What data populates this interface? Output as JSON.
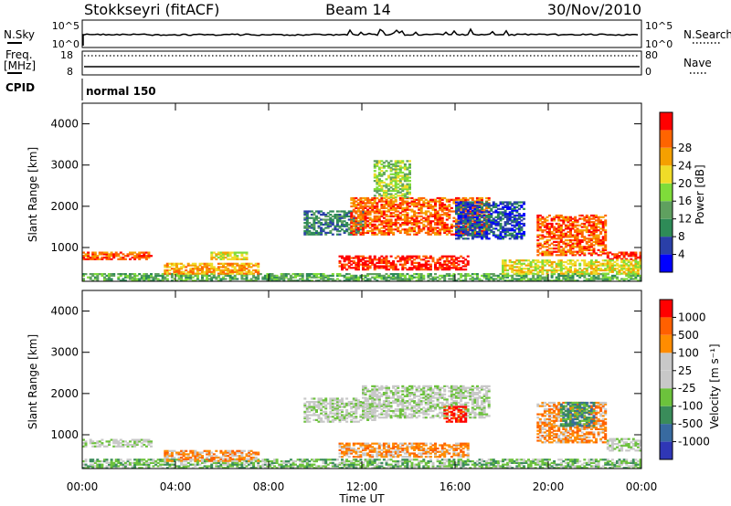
{
  "header": {
    "station": "Stokkseyri (fitACF)",
    "beam": "Beam 14",
    "date": "30/Nov/2010"
  },
  "status_panels": {
    "nsky_label": "N.Sky",
    "nsky_ticks": [
      "10^5",
      "10^0"
    ],
    "nsearch_label": "N.Search",
    "nsearch_ticks": [
      "10^5",
      "10^0"
    ],
    "freq_label_line1": "Freq.",
    "freq_label_line2": "[MHz]",
    "freq_ticks": [
      "18",
      "8"
    ],
    "nave_label": "Nave",
    "nave_ticks": [
      "80",
      "0"
    ],
    "cpid_label": "CPID",
    "cpid_value": "normal 150"
  },
  "colors": {
    "power_scale": [
      "#0000ff",
      "#2a3fa8",
      "#2e8b57",
      "#5fa05f",
      "#7fdc3a",
      "#f0dc28",
      "#f5a000",
      "#ff6400",
      "#ff0000"
    ],
    "velocity_scale": [
      "#2f37b6",
      "#386aa0",
      "#3a8c5a",
      "#6cc23c",
      "#c8c8c8",
      "#c8c8c8",
      "#ff8c00",
      "#ff6000",
      "#ff0000"
    ]
  },
  "chart_data": [
    {
      "type": "heatmap",
      "name": "power",
      "ylabel": "Slant Range [km]",
      "y_ticks": [
        "1000",
        "2000",
        "3000",
        "4000"
      ],
      "ylim": [
        180,
        4500
      ],
      "xlim": [
        "00:00",
        "24:00"
      ],
      "colorbar_label": "Power [dB]",
      "colorbar_ticks": [
        "4",
        "8",
        "12",
        "16",
        "20",
        "24",
        "28"
      ],
      "regions": [
        {
          "t0": 0.0,
          "t1": 3.0,
          "r0": 700,
          "r1": 900,
          "level": 7
        },
        {
          "t0": 0.0,
          "t1": 24.0,
          "r0": 180,
          "r1": 350,
          "level": 3
        },
        {
          "t0": 3.5,
          "t1": 7.5,
          "r0": 350,
          "r1": 600,
          "level": 6
        },
        {
          "t0": 5.5,
          "t1": 7.0,
          "r0": 700,
          "r1": 900,
          "level": 5
        },
        {
          "t0": 9.5,
          "t1": 12.0,
          "r0": 1300,
          "r1": 1900,
          "level": 2
        },
        {
          "t0": 11.0,
          "t1": 16.5,
          "r0": 450,
          "r1": 800,
          "level": 8
        },
        {
          "t0": 11.5,
          "t1": 17.5,
          "r0": 1300,
          "r1": 2200,
          "level": 7
        },
        {
          "t0": 12.5,
          "t1": 14.0,
          "r0": 2200,
          "r1": 3100,
          "level": 4
        },
        {
          "t0": 16.0,
          "t1": 19.0,
          "r0": 1200,
          "r1": 2100,
          "level": 1
        },
        {
          "t0": 19.5,
          "t1": 22.5,
          "r0": 800,
          "r1": 1800,
          "level": 7
        },
        {
          "t0": 22.5,
          "t1": 24.0,
          "r0": 700,
          "r1": 900,
          "level": 8
        },
        {
          "t0": 18.0,
          "t1": 24.0,
          "r0": 350,
          "r1": 700,
          "level": 5
        }
      ]
    },
    {
      "type": "heatmap",
      "name": "velocity",
      "ylabel": "Slant Range [km]",
      "y_ticks": [
        "1000",
        "2000",
        "3000",
        "4000"
      ],
      "ylim": [
        180,
        4500
      ],
      "xlim": [
        "00:00",
        "24:00"
      ],
      "x_ticks": [
        "00:00",
        "04:00",
        "08:00",
        "12:00",
        "16:00",
        "20:00",
        "00:00"
      ],
      "xlabel": "Time UT",
      "colorbar_label": "Velocity [m s⁻¹]",
      "colorbar_ticks": [
        "1000",
        "500",
        "100",
        "25",
        "-25",
        "-100",
        "-500",
        "-1000"
      ],
      "regions": [
        {
          "t0": 0.0,
          "t1": 3.0,
          "r0": 700,
          "r1": 900,
          "level": 4
        },
        {
          "t0": 0.0,
          "t1": 24.0,
          "r0": 180,
          "r1": 400,
          "level": 3
        },
        {
          "t0": 3.5,
          "t1": 7.5,
          "r0": 350,
          "r1": 600,
          "level": 6
        },
        {
          "t0": 9.5,
          "t1": 12.5,
          "r0": 1300,
          "r1": 1900,
          "level": 4
        },
        {
          "t0": 11.0,
          "t1": 16.5,
          "r0": 450,
          "r1": 800,
          "level": 6
        },
        {
          "t0": 12.0,
          "t1": 17.5,
          "r0": 1400,
          "r1": 2200,
          "level": 4
        },
        {
          "t0": 15.5,
          "t1": 16.5,
          "r0": 1300,
          "r1": 1700,
          "level": 8
        },
        {
          "t0": 19.5,
          "t1": 22.5,
          "r0": 800,
          "r1": 1800,
          "level": 6
        },
        {
          "t0": 20.5,
          "t1": 22.0,
          "r0": 1200,
          "r1": 1800,
          "level": 2
        },
        {
          "t0": 22.5,
          "t1": 24.0,
          "r0": 600,
          "r1": 900,
          "level": 4
        }
      ]
    }
  ]
}
